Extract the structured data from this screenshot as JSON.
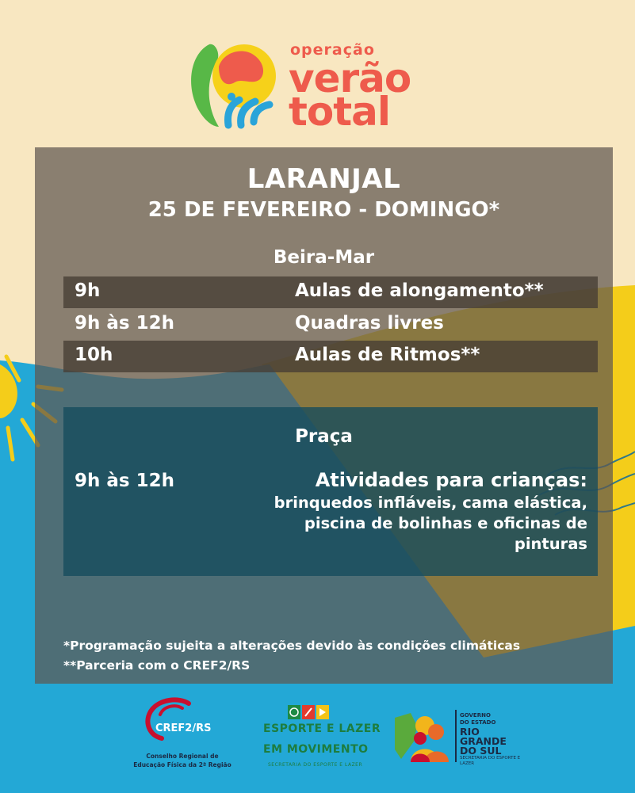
{
  "header": {
    "logo_small": "operação",
    "logo_line1": "verão",
    "logo_line2": "total"
  },
  "event": {
    "location": "LARANJAL",
    "date": "25 DE FEVEREIRO - DOMINGO*"
  },
  "beira_mar": {
    "title": "Beira-Mar",
    "rows": [
      {
        "time": "9h",
        "activity": "Aulas de alongamento**"
      },
      {
        "time": "9h às 12h",
        "activity": "Quadras livres"
      },
      {
        "time": "10h",
        "activity": "Aulas de Ritmos**"
      }
    ]
  },
  "praca": {
    "title": "Praça",
    "time": "9h às 12h",
    "activity_title": "Atividades para crianças:",
    "activity_desc": "brinquedos infláveis, cama elástica, piscina de bolinhas e oficinas de pinturas"
  },
  "notes": [
    "*Programação sujeita a alterações devido às condições climáticas",
    "**Parceria com o CREF2/RS"
  ],
  "footer": {
    "cref_name": "CREF2/RS",
    "cref_sub": "Conselho Regional de Educação Física da 2ª Região",
    "esporte_line1": "ESPORTE E LAZER",
    "esporte_line2": "EM MOVIMENTO",
    "esporte_sub": "SECRETARIA DO ESPORTE E LAZER",
    "rgs_gov": "GOVERNO DO ESTADO",
    "rgs_name": "RIO GRANDE DO SUL",
    "rgs_sub": "SECRETARIA DO ESPORTE E LAZER"
  },
  "colors": {
    "background_cream": "#f8e7c1",
    "sea_blue": "#22a9d6",
    "sun_yellow": "#f7d21a",
    "brand_coral": "#ee5b4c"
  }
}
